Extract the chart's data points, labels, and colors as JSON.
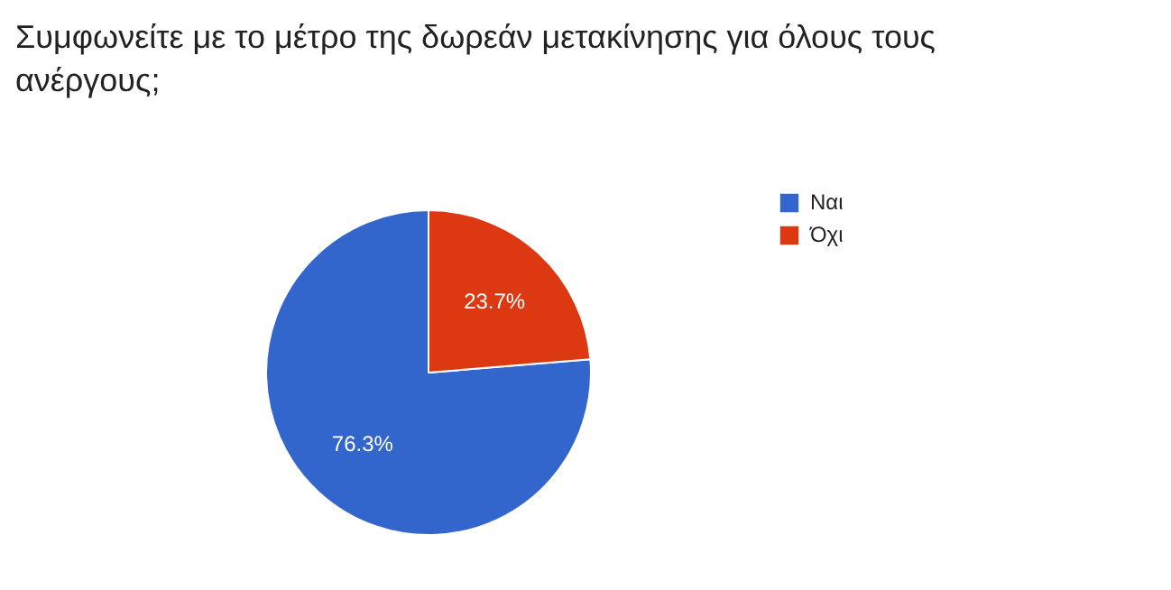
{
  "chart_data": {
    "type": "pie",
    "title": "Συμφωνείτε με το μέτρο της δωρεάν μετακίνησης για όλους τους ανέργους;",
    "categories": [
      "Ναι",
      "Όχι"
    ],
    "values": [
      76.3,
      23.7
    ],
    "colors": [
      "#3366cc",
      "#dc3912"
    ],
    "value_labels": [
      "76.3%",
      "23.7%"
    ],
    "legend": "right"
  }
}
